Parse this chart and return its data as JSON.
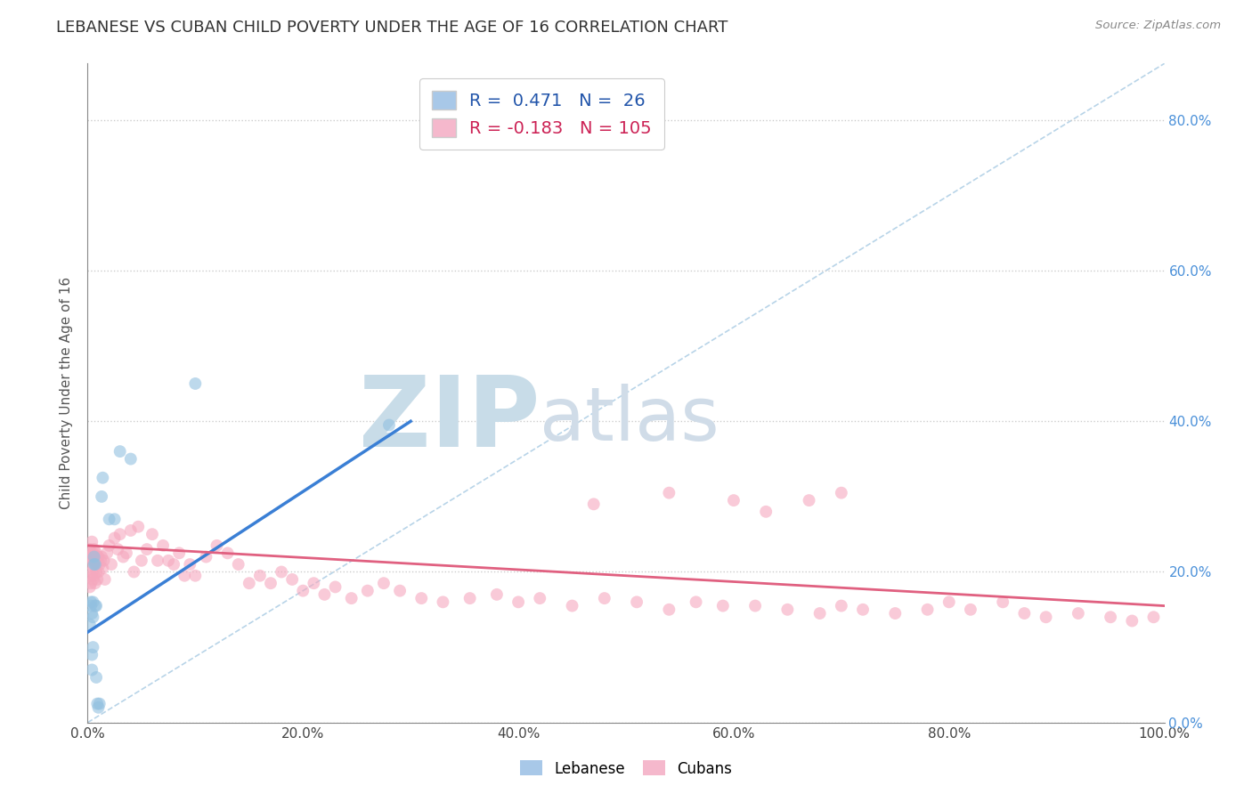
{
  "title": "LEBANESE VS CUBAN CHILD POVERTY UNDER THE AGE OF 16 CORRELATION CHART",
  "source": "Source: ZipAtlas.com",
  "ylabel": "Child Poverty Under the Age of 16",
  "r_lebanese": 0.471,
  "n_lebanese": 26,
  "r_cubans": -0.183,
  "n_cubans": 105,
  "xlim": [
    0.0,
    1.0
  ],
  "ylim": [
    0.0,
    0.875
  ],
  "xtick_vals": [
    0.0,
    0.2,
    0.4,
    0.6,
    0.8,
    1.0
  ],
  "ytick_vals": [
    0.0,
    0.2,
    0.4,
    0.6,
    0.8
  ],
  "blue_scatter_x": [
    0.002,
    0.003,
    0.003,
    0.004,
    0.004,
    0.004,
    0.005,
    0.005,
    0.005,
    0.006,
    0.006,
    0.007,
    0.007,
    0.008,
    0.008,
    0.009,
    0.01,
    0.011,
    0.013,
    0.014,
    0.02,
    0.025,
    0.03,
    0.04,
    0.1,
    0.28
  ],
  "blue_scatter_y": [
    0.13,
    0.155,
    0.16,
    0.145,
    0.09,
    0.07,
    0.16,
    0.14,
    0.1,
    0.22,
    0.21,
    0.155,
    0.21,
    0.155,
    0.06,
    0.025,
    0.02,
    0.025,
    0.3,
    0.325,
    0.27,
    0.27,
    0.36,
    0.35,
    0.45,
    0.395
  ],
  "pink_scatter_x": [
    0.002,
    0.002,
    0.002,
    0.003,
    0.003,
    0.003,
    0.003,
    0.004,
    0.004,
    0.004,
    0.005,
    0.005,
    0.005,
    0.006,
    0.006,
    0.006,
    0.007,
    0.007,
    0.007,
    0.008,
    0.008,
    0.008,
    0.009,
    0.009,
    0.01,
    0.01,
    0.011,
    0.012,
    0.013,
    0.014,
    0.015,
    0.016,
    0.018,
    0.02,
    0.022,
    0.025,
    0.028,
    0.03,
    0.033,
    0.036,
    0.04,
    0.043,
    0.047,
    0.05,
    0.055,
    0.06,
    0.065,
    0.07,
    0.075,
    0.08,
    0.085,
    0.09,
    0.095,
    0.1,
    0.11,
    0.12,
    0.13,
    0.14,
    0.15,
    0.16,
    0.17,
    0.18,
    0.19,
    0.2,
    0.21,
    0.22,
    0.23,
    0.245,
    0.26,
    0.275,
    0.29,
    0.31,
    0.33,
    0.355,
    0.38,
    0.4,
    0.42,
    0.45,
    0.48,
    0.51,
    0.54,
    0.565,
    0.59,
    0.62,
    0.65,
    0.68,
    0.7,
    0.72,
    0.75,
    0.78,
    0.8,
    0.82,
    0.85,
    0.87,
    0.89,
    0.92,
    0.95,
    0.97,
    0.99,
    0.47,
    0.54,
    0.6,
    0.63,
    0.67,
    0.7
  ],
  "pink_scatter_y": [
    0.22,
    0.23,
    0.18,
    0.225,
    0.21,
    0.195,
    0.185,
    0.22,
    0.2,
    0.24,
    0.215,
    0.225,
    0.19,
    0.215,
    0.23,
    0.195,
    0.215,
    0.22,
    0.185,
    0.21,
    0.225,
    0.2,
    0.22,
    0.19,
    0.2,
    0.22,
    0.21,
    0.215,
    0.22,
    0.205,
    0.215,
    0.19,
    0.225,
    0.235,
    0.21,
    0.245,
    0.23,
    0.25,
    0.22,
    0.225,
    0.255,
    0.2,
    0.26,
    0.215,
    0.23,
    0.25,
    0.215,
    0.235,
    0.215,
    0.21,
    0.225,
    0.195,
    0.21,
    0.195,
    0.22,
    0.235,
    0.225,
    0.21,
    0.185,
    0.195,
    0.185,
    0.2,
    0.19,
    0.175,
    0.185,
    0.17,
    0.18,
    0.165,
    0.175,
    0.185,
    0.175,
    0.165,
    0.16,
    0.165,
    0.17,
    0.16,
    0.165,
    0.155,
    0.165,
    0.16,
    0.15,
    0.16,
    0.155,
    0.155,
    0.15,
    0.145,
    0.155,
    0.15,
    0.145,
    0.15,
    0.16,
    0.15,
    0.16,
    0.145,
    0.14,
    0.145,
    0.14,
    0.135,
    0.14,
    0.29,
    0.305,
    0.295,
    0.28,
    0.295,
    0.305
  ],
  "blue_line_x": [
    0.0,
    0.3
  ],
  "blue_line_y": [
    0.12,
    0.4
  ],
  "pink_line_x": [
    0.0,
    1.0
  ],
  "pink_line_y": [
    0.235,
    0.155
  ],
  "dashed_line_x": [
    0.0,
    1.0
  ],
  "dashed_line_y": [
    0.0,
    0.875
  ],
  "background_color": "#ffffff",
  "grid_color": "#cccccc",
  "title_color": "#333333",
  "blue_dot_color": "#92c0e0",
  "pink_dot_color": "#f5a8be",
  "blue_line_color": "#3a7fd5",
  "pink_line_color": "#e06080",
  "dashed_line_color": "#b8d4e8",
  "watermark_zip_color": "#c8dce8",
  "watermark_atlas_color": "#d0dce8",
  "right_tick_color": "#4a90d9",
  "title_fontsize": 13,
  "axis_label_fontsize": 11,
  "tick_fontsize": 11,
  "scatter_size": 100,
  "scatter_alpha": 0.6
}
